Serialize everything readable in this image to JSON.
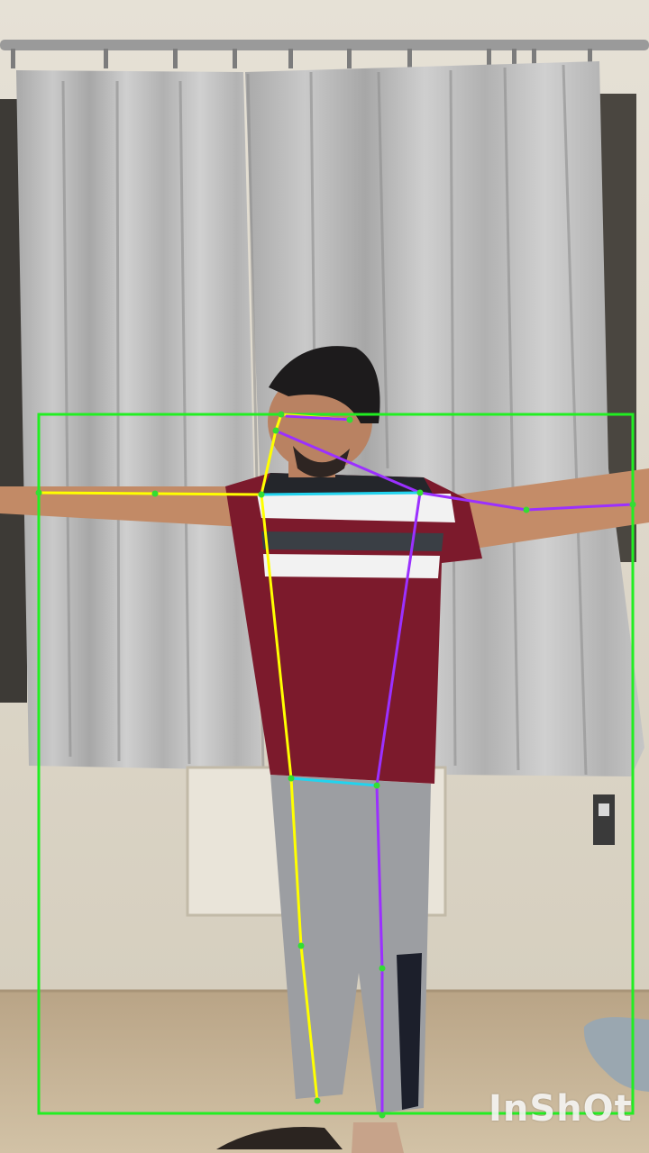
{
  "watermark": {
    "text": "InShOt"
  },
  "overlay": {
    "bounding_box_color": "#22ee22",
    "keypoint_color": "#33dd33",
    "left_side_color": "#ffff00",
    "right_side_color": "#9b30ff",
    "torso_connector_color": "#22d3ee"
  }
}
